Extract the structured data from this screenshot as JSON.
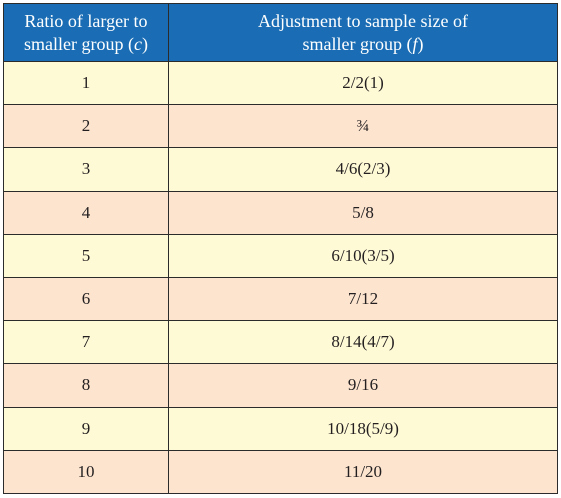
{
  "table": {
    "headers": [
      {
        "line1": "Ratio of larger to",
        "line2_prefix": "smaller group (",
        "var": "c",
        "line2_suffix": ")"
      },
      {
        "line1": "Adjustment to sample size of",
        "line2_prefix": "smaller group (",
        "var": "f",
        "line2_suffix": ")"
      }
    ],
    "rows": [
      {
        "c": "1",
        "f": "2/2(1)"
      },
      {
        "c": "2",
        "f": "¾"
      },
      {
        "c": "3",
        "f": "4/6(2/3)"
      },
      {
        "c": "4",
        "f": "5/8"
      },
      {
        "c": "5",
        "f": "6/10(3/5)"
      },
      {
        "c": "6",
        "f": "7/12"
      },
      {
        "c": "7",
        "f": "8/14(4/7)"
      },
      {
        "c": "8",
        "f": "9/16"
      },
      {
        "c": "9",
        "f": "10/18(5/9)"
      },
      {
        "c": "10",
        "f": "11/20"
      }
    ],
    "colors": {
      "header": "#1a6db4",
      "row_light": "#fffad6",
      "row_peach": "#fde4cf"
    }
  }
}
